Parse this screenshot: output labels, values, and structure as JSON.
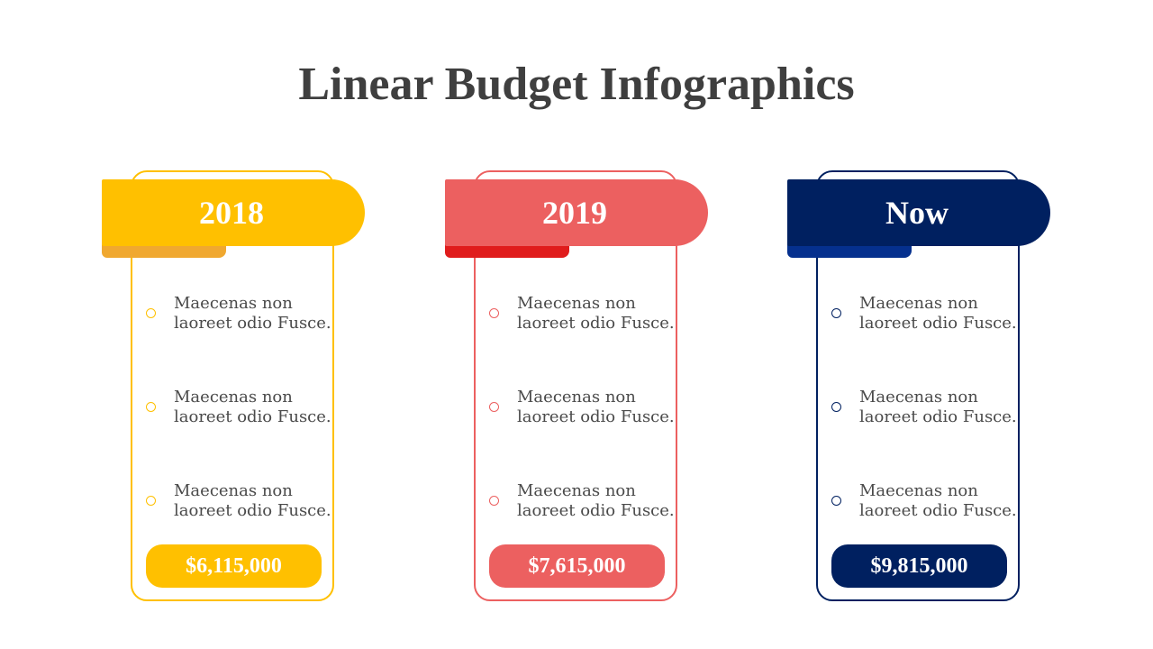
{
  "title": "Linear Budget Infographics",
  "columns": [
    {
      "label": "2018",
      "items": [
        "Maecenas non laoreet odio Fusce.",
        "Maecenas non laoreet odio Fusce.",
        "Maecenas non laoreet odio Fusce."
      ],
      "amount": "$6,115,000",
      "colors": {
        "main": "#FFC000",
        "fold": "#F0A830",
        "border": "#FFC000"
      }
    },
    {
      "label": "2019",
      "items": [
        "Maecenas non laoreet odio Fusce.",
        "Maecenas non laoreet odio Fusce.",
        "Maecenas non laoreet odio Fusce."
      ],
      "amount": "$7,615,000",
      "colors": {
        "main": "#EC6060",
        "fold": "#E01C1C",
        "border": "#EC6060"
      }
    },
    {
      "label": "Now",
      "items": [
        "Maecenas non laoreet odio Fusce.",
        "Maecenas non laoreet odio Fusce.",
        "Maecenas non laoreet odio Fusce."
      ],
      "amount": "$9,815,000",
      "colors": {
        "main": "#002060",
        "fold": "#05308E",
        "border": "#002060"
      }
    }
  ]
}
